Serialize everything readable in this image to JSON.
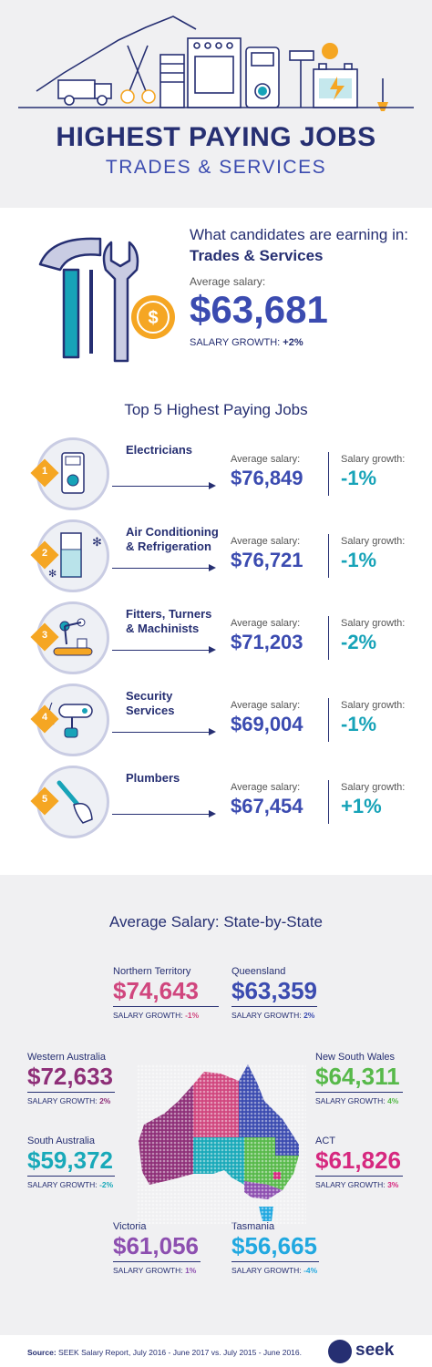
{
  "header": {
    "title": "HIGHEST PAYING JOBS",
    "subtitle": "TRADES & SERVICES"
  },
  "overview": {
    "lead": "What candidates are earning in:",
    "category": "Trades & Services",
    "avg_label": "Average salary:",
    "avg_value": "$63,681",
    "growth_label": "SALARY GROWTH:",
    "growth_value": "+2%"
  },
  "top_jobs": {
    "heading": "Top 5 Highest Paying Jobs",
    "avg_label": "Average salary:",
    "growth_label": "Salary growth:",
    "items": [
      {
        "rank": "1",
        "name_line1": "Electricians",
        "name_line2": "",
        "avg": "$76,849",
        "growth": "-1%",
        "icon": "multimeter-icon"
      },
      {
        "rank": "2",
        "name_line1": "Air Conditioning",
        "name_line2": "& Refrigeration",
        "avg": "$76,721",
        "growth": "-1%",
        "icon": "fridge-icon"
      },
      {
        "rank": "3",
        "name_line1": "Fitters, Turners",
        "name_line2": "& Machinists",
        "avg": "$71,203",
        "growth": "-2%",
        "icon": "robot-arm-icon"
      },
      {
        "rank": "4",
        "name_line1": "Security",
        "name_line2": "Services",
        "avg": "$69,004",
        "growth": "-1%",
        "icon": "security-camera-icon"
      },
      {
        "rank": "5",
        "name_line1": "Plumbers",
        "name_line2": "",
        "avg": "$67,454",
        "growth": "+1%",
        "icon": "plunger-icon"
      }
    ]
  },
  "states": {
    "heading": "Average Salary: State-by-State",
    "growth_label": "SALARY GROWTH:",
    "items": {
      "nt": {
        "name": "Northern Territory",
        "value": "$74,643",
        "growth": "-1%",
        "color": "#d0467e"
      },
      "qld": {
        "name": "Queensland",
        "value": "$63,359",
        "growth": "2%",
        "color": "#3b4bb0"
      },
      "wa": {
        "name": "Western Australia",
        "value": "$72,633",
        "growth": "2%",
        "color": "#8e2f78"
      },
      "nsw": {
        "name": "New South Wales",
        "value": "$64,311",
        "growth": "4%",
        "color": "#57b94a"
      },
      "sa": {
        "name": "South Australia",
        "value": "$59,372",
        "growth": "-2%",
        "color": "#19a9b9"
      },
      "act": {
        "name": "ACT",
        "value": "$61,826",
        "growth": "3%",
        "color": "#d6287f"
      },
      "vic": {
        "name": "Victoria",
        "value": "$61,056",
        "growth": "1%",
        "color": "#8d4fb0"
      },
      "tas": {
        "name": "Tasmania",
        "value": "$56,665",
        "growth": "-4%",
        "color": "#21a8e0"
      }
    }
  },
  "footer": {
    "source_label": "Source:",
    "source_text": "SEEK Salary Report, July 2016 - June 2017 vs. July 2015 - June 2016.",
    "logo_text": "seek"
  }
}
